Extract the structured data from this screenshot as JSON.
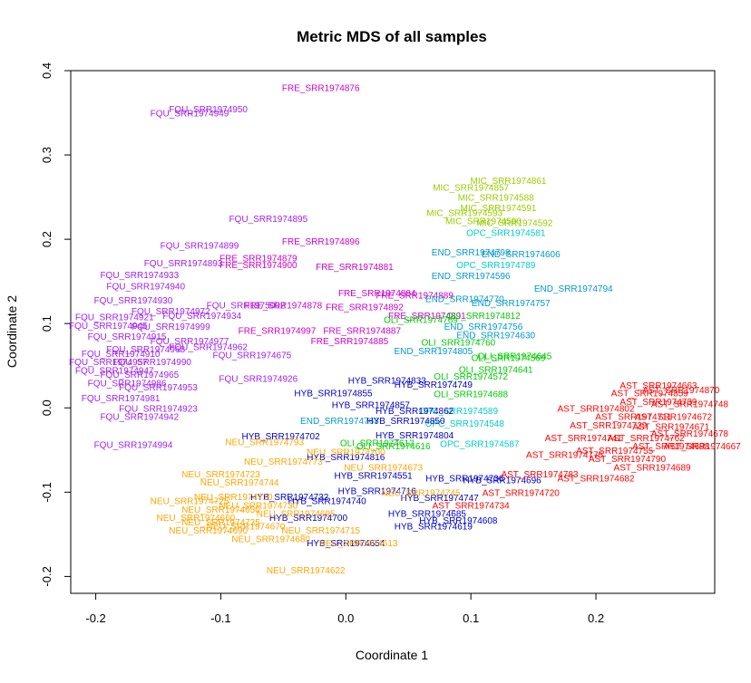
{
  "chart_data": {
    "type": "scatter",
    "title": "Metric MDS of all samples",
    "xlabel": "Coordinate 1",
    "ylabel": "Coordinate 2",
    "xlim": [
      -0.22,
      0.295
    ],
    "ylim": [
      -0.22,
      0.4
    ],
    "xticks": [
      -0.2,
      -0.1,
      0.0,
      0.1,
      0.2
    ],
    "xtick_labels": [
      "-0.2",
      "-0.1",
      "0.0",
      "0.1",
      "0.2"
    ],
    "yticks": [
      -0.2,
      -0.1,
      0.0,
      0.1,
      0.2,
      0.3,
      0.4
    ],
    "ytick_labels": [
      "-0.2",
      "-0.1",
      "0.0",
      "0.1",
      "0.2",
      "0.3",
      "0.4"
    ],
    "grid": false,
    "legend": "none",
    "points": [
      {
        "label": "FRE_SRR1974876",
        "x": -0.02,
        "y": 0.38,
        "color": "#cc00cc"
      },
      {
        "label": "FQU_SRR1974950",
        "x": -0.11,
        "y": 0.355,
        "color": "#a020f0"
      },
      {
        "label": "FQU_SRR1974949",
        "x": -0.125,
        "y": 0.35,
        "color": "#a020f0"
      },
      {
        "label": "FQU_SRR1974895",
        "x": -0.062,
        "y": 0.225,
        "color": "#a020f0"
      },
      {
        "label": "FRE_SRR1974896",
        "x": -0.02,
        "y": 0.198,
        "color": "#cc00cc"
      },
      {
        "label": "FQU_SRR1974899",
        "x": -0.117,
        "y": 0.193,
        "color": "#a020f0"
      },
      {
        "label": "FRE_SRR1974881",
        "x": 0.007,
        "y": 0.168,
        "color": "#cc00cc"
      },
      {
        "label": "FRE_SRR1974900",
        "x": -0.07,
        "y": 0.17,
        "color": "#cc00cc"
      },
      {
        "label": "FRE_SRR1974879",
        "x": -0.07,
        "y": 0.178,
        "color": "#cc00cc"
      },
      {
        "label": "FQU_SRR1974893",
        "x": -0.13,
        "y": 0.172,
        "color": "#a020f0"
      },
      {
        "label": "FQU_SRR1974933",
        "x": -0.165,
        "y": 0.158,
        "color": "#a020f0"
      },
      {
        "label": "FRE_SRR1974884",
        "x": 0.025,
        "y": 0.137,
        "color": "#cc00cc"
      },
      {
        "label": "FRE_SRR1974889",
        "x": 0.055,
        "y": 0.134,
        "color": "#cc00cc"
      },
      {
        "label": "FRE_SRR1974892",
        "x": 0.015,
        "y": 0.12,
        "color": "#cc00cc"
      },
      {
        "label": "FRE_SRR1974878",
        "x": -0.05,
        "y": 0.122,
        "color": "#cc00cc"
      },
      {
        "label": "FQU_SRR1975002",
        "x": -0.08,
        "y": 0.122,
        "color": "#a020f0"
      },
      {
        "label": "FQU_SRR1974934",
        "x": -0.115,
        "y": 0.11,
        "color": "#a020f0"
      },
      {
        "label": "FRE_SRR1974891",
        "x": 0.065,
        "y": 0.11,
        "color": "#cc00cc"
      },
      {
        "label": "FQU_SRR1974999",
        "x": -0.14,
        "y": 0.097,
        "color": "#a020f0"
      },
      {
        "label": "FRE_SRR1974997",
        "x": -0.055,
        "y": 0.092,
        "color": "#cc00cc"
      },
      {
        "label": "FRE_SRR1974887",
        "x": 0.013,
        "y": 0.092,
        "color": "#cc00cc"
      },
      {
        "label": "FRE_SRR1974885",
        "x": 0.003,
        "y": 0.08,
        "color": "#cc00cc"
      },
      {
        "label": "FQU_SRR1974962",
        "x": -0.11,
        "y": 0.073,
        "color": "#a020f0"
      },
      {
        "label": "FQU_SRR1974675",
        "x": -0.075,
        "y": 0.063,
        "color": "#a020f0"
      },
      {
        "label": "FQU_SRR1974977",
        "x": -0.125,
        "y": 0.08,
        "color": "#a020f0"
      },
      {
        "label": "FQU_SRR1974965",
        "x": -0.165,
        "y": 0.04,
        "color": "#a020f0"
      },
      {
        "label": "FQU_SRR1974926",
        "x": -0.07,
        "y": 0.035,
        "color": "#a020f0"
      },
      {
        "label": "FQU_SRR1974947",
        "x": -0.185,
        "y": 0.045,
        "color": "#a020f0"
      },
      {
        "label": "FQU_SRR1974953",
        "x": -0.15,
        "y": 0.025,
        "color": "#a020f0"
      },
      {
        "label": "FQU_SRR1974981",
        "x": -0.18,
        "y": 0.012,
        "color": "#a020f0"
      },
      {
        "label": "FQU_SRR1974923",
        "x": -0.15,
        "y": 0.0,
        "color": "#a020f0"
      },
      {
        "label": "FQU_SRR1974942",
        "x": -0.165,
        "y": -0.01,
        "color": "#a020f0"
      },
      {
        "label": "FQU_SRR1974994",
        "x": -0.17,
        "y": -0.043,
        "color": "#a020f0"
      },
      {
        "label": "FQU_SRR1974910",
        "x": -0.18,
        "y": 0.065,
        "color": "#a020f0"
      },
      {
        "label": "FQU_SRR1974915",
        "x": -0.175,
        "y": 0.085,
        "color": "#a020f0"
      },
      {
        "label": "FQU_SRR1974921",
        "x": -0.185,
        "y": 0.108,
        "color": "#a020f0"
      },
      {
        "label": "FQU_SRR1974930",
        "x": -0.17,
        "y": 0.128,
        "color": "#a020f0"
      },
      {
        "label": "FQU_SRR1974940",
        "x": -0.16,
        "y": 0.145,
        "color": "#a020f0"
      },
      {
        "label": "FQU_SRR1974945",
        "x": -0.19,
        "y": 0.098,
        "color": "#a020f0"
      },
      {
        "label": "FQU_SRR1974957",
        "x": -0.19,
        "y": 0.055,
        "color": "#a020f0"
      },
      {
        "label": "FQU_SRR1974968",
        "x": -0.16,
        "y": 0.07,
        "color": "#a020f0"
      },
      {
        "label": "FQU_SRR1974972",
        "x": -0.14,
        "y": 0.115,
        "color": "#a020f0"
      },
      {
        "label": "FQU_SRR1974986",
        "x": -0.175,
        "y": 0.03,
        "color": "#a020f0"
      },
      {
        "label": "FQU_SRR1974990",
        "x": -0.155,
        "y": 0.055,
        "color": "#a020f0"
      },
      {
        "label": "MIC_SRR1974861",
        "x": 0.13,
        "y": 0.27,
        "color": "#99cc00"
      },
      {
        "label": "MIC_SRR1974857",
        "x": 0.1,
        "y": 0.262,
        "color": "#99cc00"
      },
      {
        "label": "MIC_SRR1974588",
        "x": 0.12,
        "y": 0.25,
        "color": "#99cc00"
      },
      {
        "label": "MIC_SRR1974591",
        "x": 0.122,
        "y": 0.238,
        "color": "#99cc00"
      },
      {
        "label": "MIC_SRR1974593",
        "x": 0.095,
        "y": 0.232,
        "color": "#99cc00"
      },
      {
        "label": "MIC_SRR1974592",
        "x": 0.135,
        "y": 0.22,
        "color": "#99cc00"
      },
      {
        "label": "MIC_SRR1974590",
        "x": 0.11,
        "y": 0.222,
        "color": "#99cc00"
      },
      {
        "label": "OPC_SRR1974581",
        "x": 0.128,
        "y": 0.208,
        "color": "#00cccc"
      },
      {
        "label": "END_SRR1974798",
        "x": 0.1,
        "y": 0.185,
        "color": "#0099cc"
      },
      {
        "label": "END_SRR1974606",
        "x": 0.14,
        "y": 0.183,
        "color": "#0099cc"
      },
      {
        "label": "OPC_SRR1974789",
        "x": 0.12,
        "y": 0.17,
        "color": "#00cccc"
      },
      {
        "label": "END_SRR1974794",
        "x": 0.182,
        "y": 0.142,
        "color": "#0099cc"
      },
      {
        "label": "END_SRR1974596",
        "x": 0.1,
        "y": 0.157,
        "color": "#0099cc"
      },
      {
        "label": "END_SRR1974757",
        "x": 0.132,
        "y": 0.125,
        "color": "#0099cc"
      },
      {
        "label": "END_SRR1974770",
        "x": 0.095,
        "y": 0.13,
        "color": "#0099cc"
      },
      {
        "label": "END_SRR1974756",
        "x": 0.11,
        "y": 0.097,
        "color": "#0099cc"
      },
      {
        "label": "END_SRR1974630",
        "x": 0.12,
        "y": 0.087,
        "color": "#0099cc"
      },
      {
        "label": "OLI_SRR1974760",
        "x": 0.09,
        "y": 0.078,
        "color": "#00cc00"
      },
      {
        "label": "END_SRR1974805",
        "x": 0.07,
        "y": 0.068,
        "color": "#0099cc"
      },
      {
        "label": "OLI_SRR1974812",
        "x": 0.11,
        "y": 0.11,
        "color": "#00cc00"
      },
      {
        "label": "OLI_SRR1974769",
        "x": 0.06,
        "y": 0.105,
        "color": "#00cc00"
      },
      {
        "label": "OLI_SRR1974645",
        "x": 0.135,
        "y": 0.062,
        "color": "#00cc00"
      },
      {
        "label": "OLI_SRR1974569",
        "x": 0.13,
        "y": 0.06,
        "color": "#00cc00"
      },
      {
        "label": "OLI_SRR1974572",
        "x": 0.1,
        "y": 0.038,
        "color": "#00cc00"
      },
      {
        "label": "OLI_SRR1974641",
        "x": 0.12,
        "y": 0.046,
        "color": "#00cc00"
      },
      {
        "label": "OLI_SRR1974688",
        "x": 0.1,
        "y": 0.017,
        "color": "#00cc00"
      },
      {
        "label": "OPC_SRR1974589",
        "x": 0.09,
        "y": -0.003,
        "color": "#00cccc"
      },
      {
        "label": "OPC_SRR1974548",
        "x": 0.095,
        "y": -0.018,
        "color": "#00cccc"
      },
      {
        "label": "OPC_SRR1974587",
        "x": 0.107,
        "y": -0.042,
        "color": "#00cccc"
      },
      {
        "label": "OLI_SRR1974616",
        "x": 0.038,
        "y": -0.045,
        "color": "#00cc00"
      },
      {
        "label": "OLI_SRR1974612",
        "x": 0.025,
        "y": -0.041,
        "color": "#00cc00"
      },
      {
        "label": "END_SRR1974763",
        "x": -0.005,
        "y": -0.015,
        "color": "#0099cc"
      },
      {
        "label": "HYB_SRR1974833",
        "x": 0.033,
        "y": 0.033,
        "color": "#0000cc"
      },
      {
        "label": "HYB_SRR1974855",
        "x": -0.01,
        "y": 0.018,
        "color": "#0000cc"
      },
      {
        "label": "HYB_SRR1974749",
        "x": 0.07,
        "y": 0.028,
        "color": "#0000cc"
      },
      {
        "label": "HYB_SRR1974857",
        "x": 0.02,
        "y": 0.004,
        "color": "#0000cc"
      },
      {
        "label": "HYB_SRR1974862",
        "x": 0.055,
        "y": -0.003,
        "color": "#0000cc"
      },
      {
        "label": "HYB_SRR1974850",
        "x": 0.048,
        "y": -0.015,
        "color": "#0000cc"
      },
      {
        "label": "HYB_SRR1974804",
        "x": 0.055,
        "y": -0.032,
        "color": "#0000cc"
      },
      {
        "label": "HYB_SRR1974702",
        "x": -0.052,
        "y": -0.033,
        "color": "#0000cc"
      },
      {
        "label": "HYB_SRR1974816",
        "x": 0.0,
        "y": -0.058,
        "color": "#0000cc"
      },
      {
        "label": "HYB_SRR1974551",
        "x": 0.022,
        "y": -0.08,
        "color": "#0000cc"
      },
      {
        "label": "HYB_SRR1974716",
        "x": 0.025,
        "y": -0.098,
        "color": "#0000cc"
      },
      {
        "label": "HYB_SRR1974736",
        "x": 0.095,
        "y": -0.083,
        "color": "#0000cc"
      },
      {
        "label": "HYB_SRR1974696",
        "x": 0.125,
        "y": -0.085,
        "color": "#0000cc"
      },
      {
        "label": "HYB_SRR1974608",
        "x": 0.09,
        "y": -0.133,
        "color": "#0000cc"
      },
      {
        "label": "HYB_SRR1974619",
        "x": 0.07,
        "y": -0.14,
        "color": "#0000cc"
      },
      {
        "label": "HYB_SRR1974685",
        "x": 0.065,
        "y": -0.125,
        "color": "#0000cc"
      },
      {
        "label": "HYB_SRR1974747",
        "x": 0.075,
        "y": -0.106,
        "color": "#0000cc"
      },
      {
        "label": "HYB_SRR1974654",
        "x": 0.0,
        "y": -0.16,
        "color": "#0000cc"
      },
      {
        "label": "HYB_SRR1974700",
        "x": -0.03,
        "y": -0.13,
        "color": "#0000cc"
      },
      {
        "label": "HYB_SRR1974732",
        "x": -0.045,
        "y": -0.105,
        "color": "#0000cc"
      },
      {
        "label": "HYB_SRR1974740",
        "x": -0.015,
        "y": -0.11,
        "color": "#0000cc"
      },
      {
        "label": "NEU_SRR1974793",
        "x": -0.065,
        "y": -0.04,
        "color": "#ffa500"
      },
      {
        "label": "NEU_SRR1974773",
        "x": -0.05,
        "y": -0.063,
        "color": "#ffa500"
      },
      {
        "label": "NEU_SRR1974723",
        "x": -0.1,
        "y": -0.078,
        "color": "#ffa500"
      },
      {
        "label": "NEU_SRR1974744",
        "x": -0.085,
        "y": -0.088,
        "color": "#ffa500"
      },
      {
        "label": "NEU_SRR1974673",
        "x": 0.03,
        "y": -0.07,
        "color": "#ffa500"
      },
      {
        "label": "NEU_SRR1974700",
        "x": 0.0,
        "y": -0.052,
        "color": "#ffa500"
      },
      {
        "label": "NEU_SRR1974613",
        "x": 0.01,
        "y": -0.16,
        "color": "#ffa500"
      },
      {
        "label": "NEU_SRR1974622",
        "x": -0.032,
        "y": -0.192,
        "color": "#ffa500"
      },
      {
        "label": "NEU_SRR1974650",
        "x": -0.1,
        "y": -0.12,
        "color": "#ffa500"
      },
      {
        "label": "NEU_SRR1974660",
        "x": -0.12,
        "y": -0.13,
        "color": "#ffa500"
      },
      {
        "label": "NEU_SRR1974670",
        "x": -0.08,
        "y": -0.14,
        "color": "#ffa500"
      },
      {
        "label": "NEU_SRR1974680",
        "x": -0.06,
        "y": -0.155,
        "color": "#ffa500"
      },
      {
        "label": "NEU_SRR1974690",
        "x": -0.11,
        "y": -0.145,
        "color": "#ffa500"
      },
      {
        "label": "NEU_SRR1974695",
        "x": -0.04,
        "y": -0.125,
        "color": "#ffa500"
      },
      {
        "label": "NEU_SRR1974710",
        "x": -0.09,
        "y": -0.105,
        "color": "#ffa500"
      },
      {
        "label": "NEU_SRR1974715",
        "x": -0.02,
        "y": -0.145,
        "color": "#ffa500"
      },
      {
        "label": "NEU_SRR1974725",
        "x": -0.125,
        "y": -0.11,
        "color": "#ffa500"
      },
      {
        "label": "NEU_SRR1974730",
        "x": -0.07,
        "y": -0.115,
        "color": "#ffa500"
      },
      {
        "label": "NEU_SRR1974735",
        "x": -0.1,
        "y": -0.135,
        "color": "#ffa500"
      },
      {
        "label": "NEU_SRR1974745",
        "x": 0.06,
        "y": -0.1,
        "color": "#ffa500"
      },
      {
        "label": "AST_SRR1974663",
        "x": 0.25,
        "y": 0.027,
        "color": "#ff0000"
      },
      {
        "label": "AST_SRR1974870",
        "x": 0.268,
        "y": 0.022,
        "color": "#ff0000"
      },
      {
        "label": "AST_SRR1974859",
        "x": 0.243,
        "y": 0.018,
        "color": "#ff0000"
      },
      {
        "label": "AST_SRR1974748",
        "x": 0.275,
        "y": 0.005,
        "color": "#ff0000"
      },
      {
        "label": "AST_SRR1974739",
        "x": 0.25,
        "y": 0.008,
        "color": "#ff0000"
      },
      {
        "label": "AST_SRR1974672",
        "x": 0.262,
        "y": -0.01,
        "color": "#ff0000"
      },
      {
        "label": "AST_SRR1974671",
        "x": 0.26,
        "y": -0.022,
        "color": "#ff0000"
      },
      {
        "label": "AST_SRR1974678",
        "x": 0.275,
        "y": -0.03,
        "color": "#ff0000"
      },
      {
        "label": "AST_SRR1974698",
        "x": 0.26,
        "y": -0.045,
        "color": "#ff0000"
      },
      {
        "label": "AST_SRR1974667",
        "x": 0.285,
        "y": -0.045,
        "color": "#ff0000"
      },
      {
        "label": "AST_SRR1974689",
        "x": 0.245,
        "y": -0.07,
        "color": "#ff0000"
      },
      {
        "label": "AST_SRR1974682",
        "x": 0.2,
        "y": -0.083,
        "color": "#ff0000"
      },
      {
        "label": "AST_SRR1974720",
        "x": 0.14,
        "y": -0.1,
        "color": "#ff0000"
      },
      {
        "label": "AST_SRR1974734",
        "x": 0.1,
        "y": -0.115,
        "color": "#ff0000"
      },
      {
        "label": "AST_SRR1974711",
        "x": 0.23,
        "y": -0.01,
        "color": "#ff0000"
      },
      {
        "label": "AST_SRR1974729",
        "x": 0.21,
        "y": -0.02,
        "color": "#ff0000"
      },
      {
        "label": "AST_SRR1974741",
        "x": 0.19,
        "y": -0.035,
        "color": "#ff0000"
      },
      {
        "label": "AST_SRR1974755",
        "x": 0.215,
        "y": -0.05,
        "color": "#ff0000"
      },
      {
        "label": "AST_SRR1974762",
        "x": 0.24,
        "y": -0.035,
        "color": "#ff0000"
      },
      {
        "label": "AST_SRR1974775",
        "x": 0.175,
        "y": -0.055,
        "color": "#ff0000"
      },
      {
        "label": "AST_SRR1974783",
        "x": 0.155,
        "y": -0.078,
        "color": "#ff0000"
      },
      {
        "label": "AST_SRR1974790",
        "x": 0.225,
        "y": -0.06,
        "color": "#ff0000"
      },
      {
        "label": "AST_SRR1974802",
        "x": 0.2,
        "y": 0.0,
        "color": "#ff0000"
      }
    ]
  }
}
